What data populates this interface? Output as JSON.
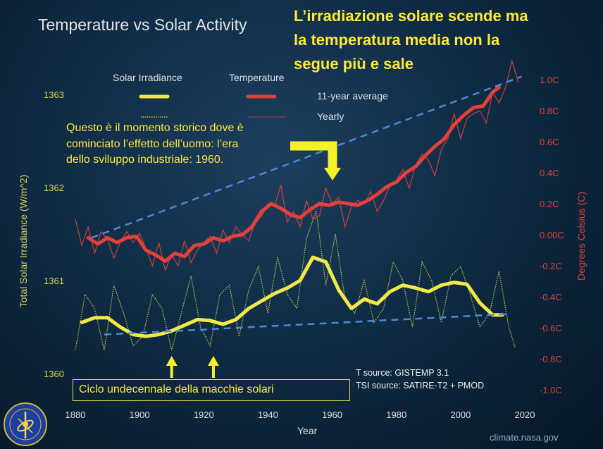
{
  "title": "Temperature vs Solar Activity",
  "callout_top": [
    "L’irradiazione solare scende ma",
    "la temperatura media non la",
    "segue più e sale"
  ],
  "callout_mid": [
    "Questo è il momento storico dove è",
    "cominciato l’effetto dell’uomo: l’era",
    "dello sviluppo industriale: 1960."
  ],
  "callout_box": "Ciclo undecennale della macchie solari",
  "legend": {
    "solar": "Solar Irradiance",
    "temperature": "Temperature",
    "average": "11-year average",
    "yearly": "Yearly"
  },
  "sources": {
    "temp": "T source: GISTEMP 3.1",
    "tsi": "TSI source: SATIRE-T2 + PMOD"
  },
  "credit": "climate.nasa.gov",
  "colors": {
    "solar": "#f2e84a",
    "temperature": "#e2403a",
    "trend": "#4f87d6",
    "arrow": "#f6f02c"
  },
  "chart_data": {
    "type": "line",
    "title": "Temperature vs Solar Activity",
    "xlabel": "Year",
    "ylabel_left": "Total Solar Irradiance (W/m^2)",
    "ylabel_right": "Degrees Celsius (C)",
    "xlim": [
      1873,
      2023
    ],
    "x_ticks": [
      1880,
      1900,
      1920,
      1940,
      1960,
      1980,
      2000,
      2020
    ],
    "y_left_lim": [
      1359.9,
      1363.1
    ],
    "y_left_ticks": [
      1360,
      1361,
      1362,
      1363
    ],
    "y_right_lim": [
      -1.1,
      1.05
    ],
    "y_right_ticks": [
      {
        "value": -1.0,
        "label": "-1.0C"
      },
      {
        "value": -0.8,
        "label": "-0.8C"
      },
      {
        "value": -0.6,
        "label": "-0.6C"
      },
      {
        "value": -0.4,
        "label": "-0.4C"
      },
      {
        "value": -0.2,
        "label": "-0.2C"
      },
      {
        "value": 0.0,
        "label": "0.00C"
      },
      {
        "value": 0.2,
        "label": "0.2C"
      },
      {
        "value": 0.4,
        "label": "0.4C"
      },
      {
        "value": 0.6,
        "label": "0.6C"
      },
      {
        "value": 0.8,
        "label": "0.8C"
      },
      {
        "value": 1.0,
        "label": "1.0C"
      }
    ],
    "series": [
      {
        "name": "Solar Irradiance 11-year average",
        "axis": "left",
        "x": [
          1882,
          1886,
          1890,
          1894,
          1898,
          1902,
          1906,
          1910,
          1914,
          1918,
          1922,
          1926,
          1930,
          1934,
          1938,
          1942,
          1946,
          1950,
          1954,
          1958,
          1962,
          1966,
          1970,
          1974,
          1978,
          1982,
          1986,
          1990,
          1994,
          1998,
          2002,
          2006,
          2010,
          2013
        ],
        "values": [
          1360.55,
          1360.6,
          1360.6,
          1360.5,
          1360.42,
          1360.4,
          1360.42,
          1360.46,
          1360.52,
          1360.58,
          1360.57,
          1360.53,
          1360.58,
          1360.7,
          1360.78,
          1360.86,
          1360.92,
          1361.0,
          1361.25,
          1361.2,
          1360.9,
          1360.7,
          1360.8,
          1360.75,
          1360.88,
          1360.95,
          1360.92,
          1360.88,
          1360.95,
          1360.98,
          1360.96,
          1360.76,
          1360.63,
          1360.63
        ]
      },
      {
        "name": "Solar Irradiance yearly",
        "axis": "left",
        "x": [
          1880,
          1883,
          1886,
          1889,
          1892,
          1895,
          1898,
          1901,
          1904,
          1907,
          1910,
          1913,
          1916,
          1919,
          1922,
          1925,
          1928,
          1931,
          1934,
          1937,
          1940,
          1943,
          1946,
          1949,
          1952,
          1955,
          1958,
          1961,
          1964,
          1967,
          1970,
          1973,
          1976,
          1979,
          1982,
          1985,
          1988,
          1991,
          1994,
          1997,
          2000,
          2003,
          2006,
          2009,
          2012,
          2015,
          2017
        ],
        "values": [
          1360.25,
          1360.85,
          1360.7,
          1360.25,
          1360.95,
          1360.65,
          1360.3,
          1360.4,
          1360.85,
          1360.7,
          1360.25,
          1360.65,
          1361.05,
          1360.5,
          1360.3,
          1360.85,
          1360.95,
          1360.4,
          1360.9,
          1361.15,
          1360.65,
          1361.25,
          1360.85,
          1360.7,
          1361.45,
          1361.75,
          1360.95,
          1361.5,
          1360.8,
          1360.65,
          1361.0,
          1360.55,
          1360.7,
          1361.2,
          1361.0,
          1360.5,
          1361.2,
          1361.0,
          1360.55,
          1361.05,
          1361.15,
          1360.85,
          1360.5,
          1360.65,
          1361.1,
          1360.5,
          1360.28
        ]
      },
      {
        "name": "Temperature 11-year average",
        "axis": "right",
        "x": [
          1884,
          1887,
          1890,
          1893,
          1896,
          1899,
          1902,
          1905,
          1908,
          1911,
          1914,
          1917,
          1920,
          1923,
          1926,
          1929,
          1932,
          1935,
          1938,
          1941,
          1944,
          1947,
          1950,
          1953,
          1956,
          1959,
          1962,
          1965,
          1968,
          1971,
          1974,
          1977,
          1980,
          1983,
          1986,
          1989,
          1992,
          1995,
          1998,
          2001,
          2004,
          2007,
          2010,
          2012
        ],
        "values": [
          -0.02,
          -0.06,
          -0.02,
          -0.05,
          -0.02,
          -0.01,
          -0.1,
          -0.13,
          -0.17,
          -0.12,
          -0.14,
          -0.07,
          -0.06,
          -0.02,
          -0.04,
          -0.01,
          0.0,
          0.05,
          0.15,
          0.2,
          0.17,
          0.13,
          0.11,
          0.16,
          0.2,
          0.19,
          0.21,
          0.2,
          0.19,
          0.22,
          0.26,
          0.31,
          0.34,
          0.4,
          0.44,
          0.51,
          0.57,
          0.62,
          0.71,
          0.77,
          0.82,
          0.83,
          0.92,
          0.95
        ]
      },
      {
        "name": "Temperature yearly",
        "axis": "right",
        "x": [
          1880,
          1882,
          1884,
          1886,
          1888,
          1890,
          1892,
          1894,
          1896,
          1898,
          1900,
          1902,
          1904,
          1906,
          1908,
          1910,
          1912,
          1914,
          1916,
          1918,
          1920,
          1922,
          1924,
          1926,
          1928,
          1930,
          1932,
          1934,
          1936,
          1938,
          1940,
          1942,
          1944,
          1946,
          1948,
          1950,
          1952,
          1954,
          1956,
          1958,
          1960,
          1962,
          1964,
          1966,
          1968,
          1970,
          1972,
          1974,
          1976,
          1978,
          1980,
          1982,
          1984,
          1986,
          1988,
          1990,
          1992,
          1994,
          1996,
          1998,
          2000,
          2002,
          2004,
          2006,
          2008,
          2010,
          2012,
          2014,
          2016,
          2018
        ],
        "values": [
          0.1,
          -0.07,
          0.05,
          -0.12,
          0.02,
          -0.03,
          -0.15,
          -0.05,
          0.02,
          -0.05,
          0.01,
          -0.09,
          -0.2,
          -0.05,
          -0.23,
          -0.13,
          -0.2,
          -0.04,
          -0.18,
          -0.1,
          -0.05,
          -0.01,
          -0.12,
          0.03,
          -0.05,
          0.05,
          0.0,
          -0.04,
          0.08,
          0.12,
          0.2,
          0.18,
          0.32,
          0.08,
          0.15,
          0.05,
          0.22,
          0.1,
          0.12,
          0.3,
          0.2,
          0.24,
          0.05,
          0.18,
          0.22,
          0.2,
          0.28,
          0.15,
          0.22,
          0.32,
          0.35,
          0.42,
          0.3,
          0.45,
          0.52,
          0.48,
          0.38,
          0.55,
          0.62,
          0.78,
          0.62,
          0.75,
          0.78,
          0.8,
          0.72,
          0.92,
          0.85,
          0.95,
          1.12,
          0.98
        ]
      }
    ],
    "trend_lines": [
      {
        "name": "Temperature trend",
        "axis": "right",
        "x": [
          1885,
          2019
        ],
        "values": [
          -0.02,
          1.02
        ]
      },
      {
        "name": "Solar trend",
        "axis": "left",
        "x": [
          1889,
          2015
        ],
        "values": [
          1360.42,
          1360.64
        ]
      }
    ],
    "annotations": {
      "year_1960_arrow": 1960,
      "solar_cycle_arrows": [
        1910,
        1923
      ]
    }
  }
}
